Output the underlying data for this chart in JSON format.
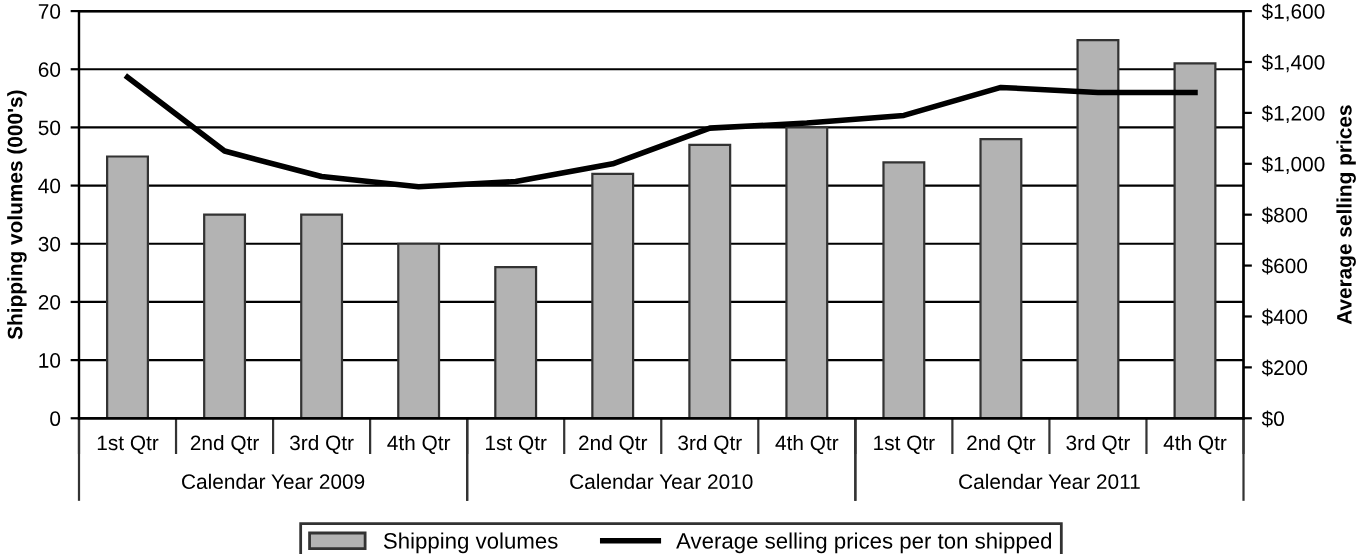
{
  "chart_data": {
    "type": "bar",
    "categories": [
      "1st Qtr",
      "2nd Qtr",
      "3rd Qtr",
      "4th Qtr",
      "1st Qtr",
      "2nd Qtr",
      "3rd Qtr",
      "4th Qtr",
      "1st Qtr",
      "2nd Qtr",
      "3rd Qtr",
      "4th Qtr"
    ],
    "ylabel": "Shipping volumes (000's)",
    "y2label": "Average selling prices",
    "series": [
      {
        "name": "Shipping volumes",
        "color": "#b3b3b3",
        "values": [
          45,
          35,
          35,
          30,
          26,
          42,
          47,
          50,
          44,
          48,
          65,
          61
        ]
      },
      {
        "name": "Average selling prices per ton shipped",
        "type": "line",
        "axis": "y2",
        "color": "#000000",
        "values": [
          1340,
          1050,
          950,
          910,
          930,
          1000,
          1140,
          1160,
          1190,
          1300,
          1280,
          1280
        ]
      }
    ],
    "annotations": [
      "Calendar Year 2009",
      "Calendar Year 2010",
      "Calendar Year 2011"
    ],
    "ylim": [
      0,
      70
    ],
    "yticks": [
      0,
      10,
      20,
      30,
      40,
      50,
      60,
      70
    ],
    "y2lim": [
      0,
      1600
    ],
    "y2ticks": [
      {
        "value": 0,
        "label": "$0"
      },
      {
        "value": 200,
        "label": "$200"
      },
      {
        "value": 400,
        "label": "$400"
      },
      {
        "value": 600,
        "label": "$600"
      },
      {
        "value": 800,
        "label": "$800"
      },
      {
        "value": 1000,
        "label": "$1,000"
      },
      {
        "value": 1200,
        "label": "$1,200"
      },
      {
        "value": 1400,
        "label": "$1,400"
      },
      {
        "value": 1600,
        "label": "$1,600"
      }
    ],
    "grid": "y",
    "legend": "bottom",
    "marker": "none",
    "line_style": "solid"
  }
}
